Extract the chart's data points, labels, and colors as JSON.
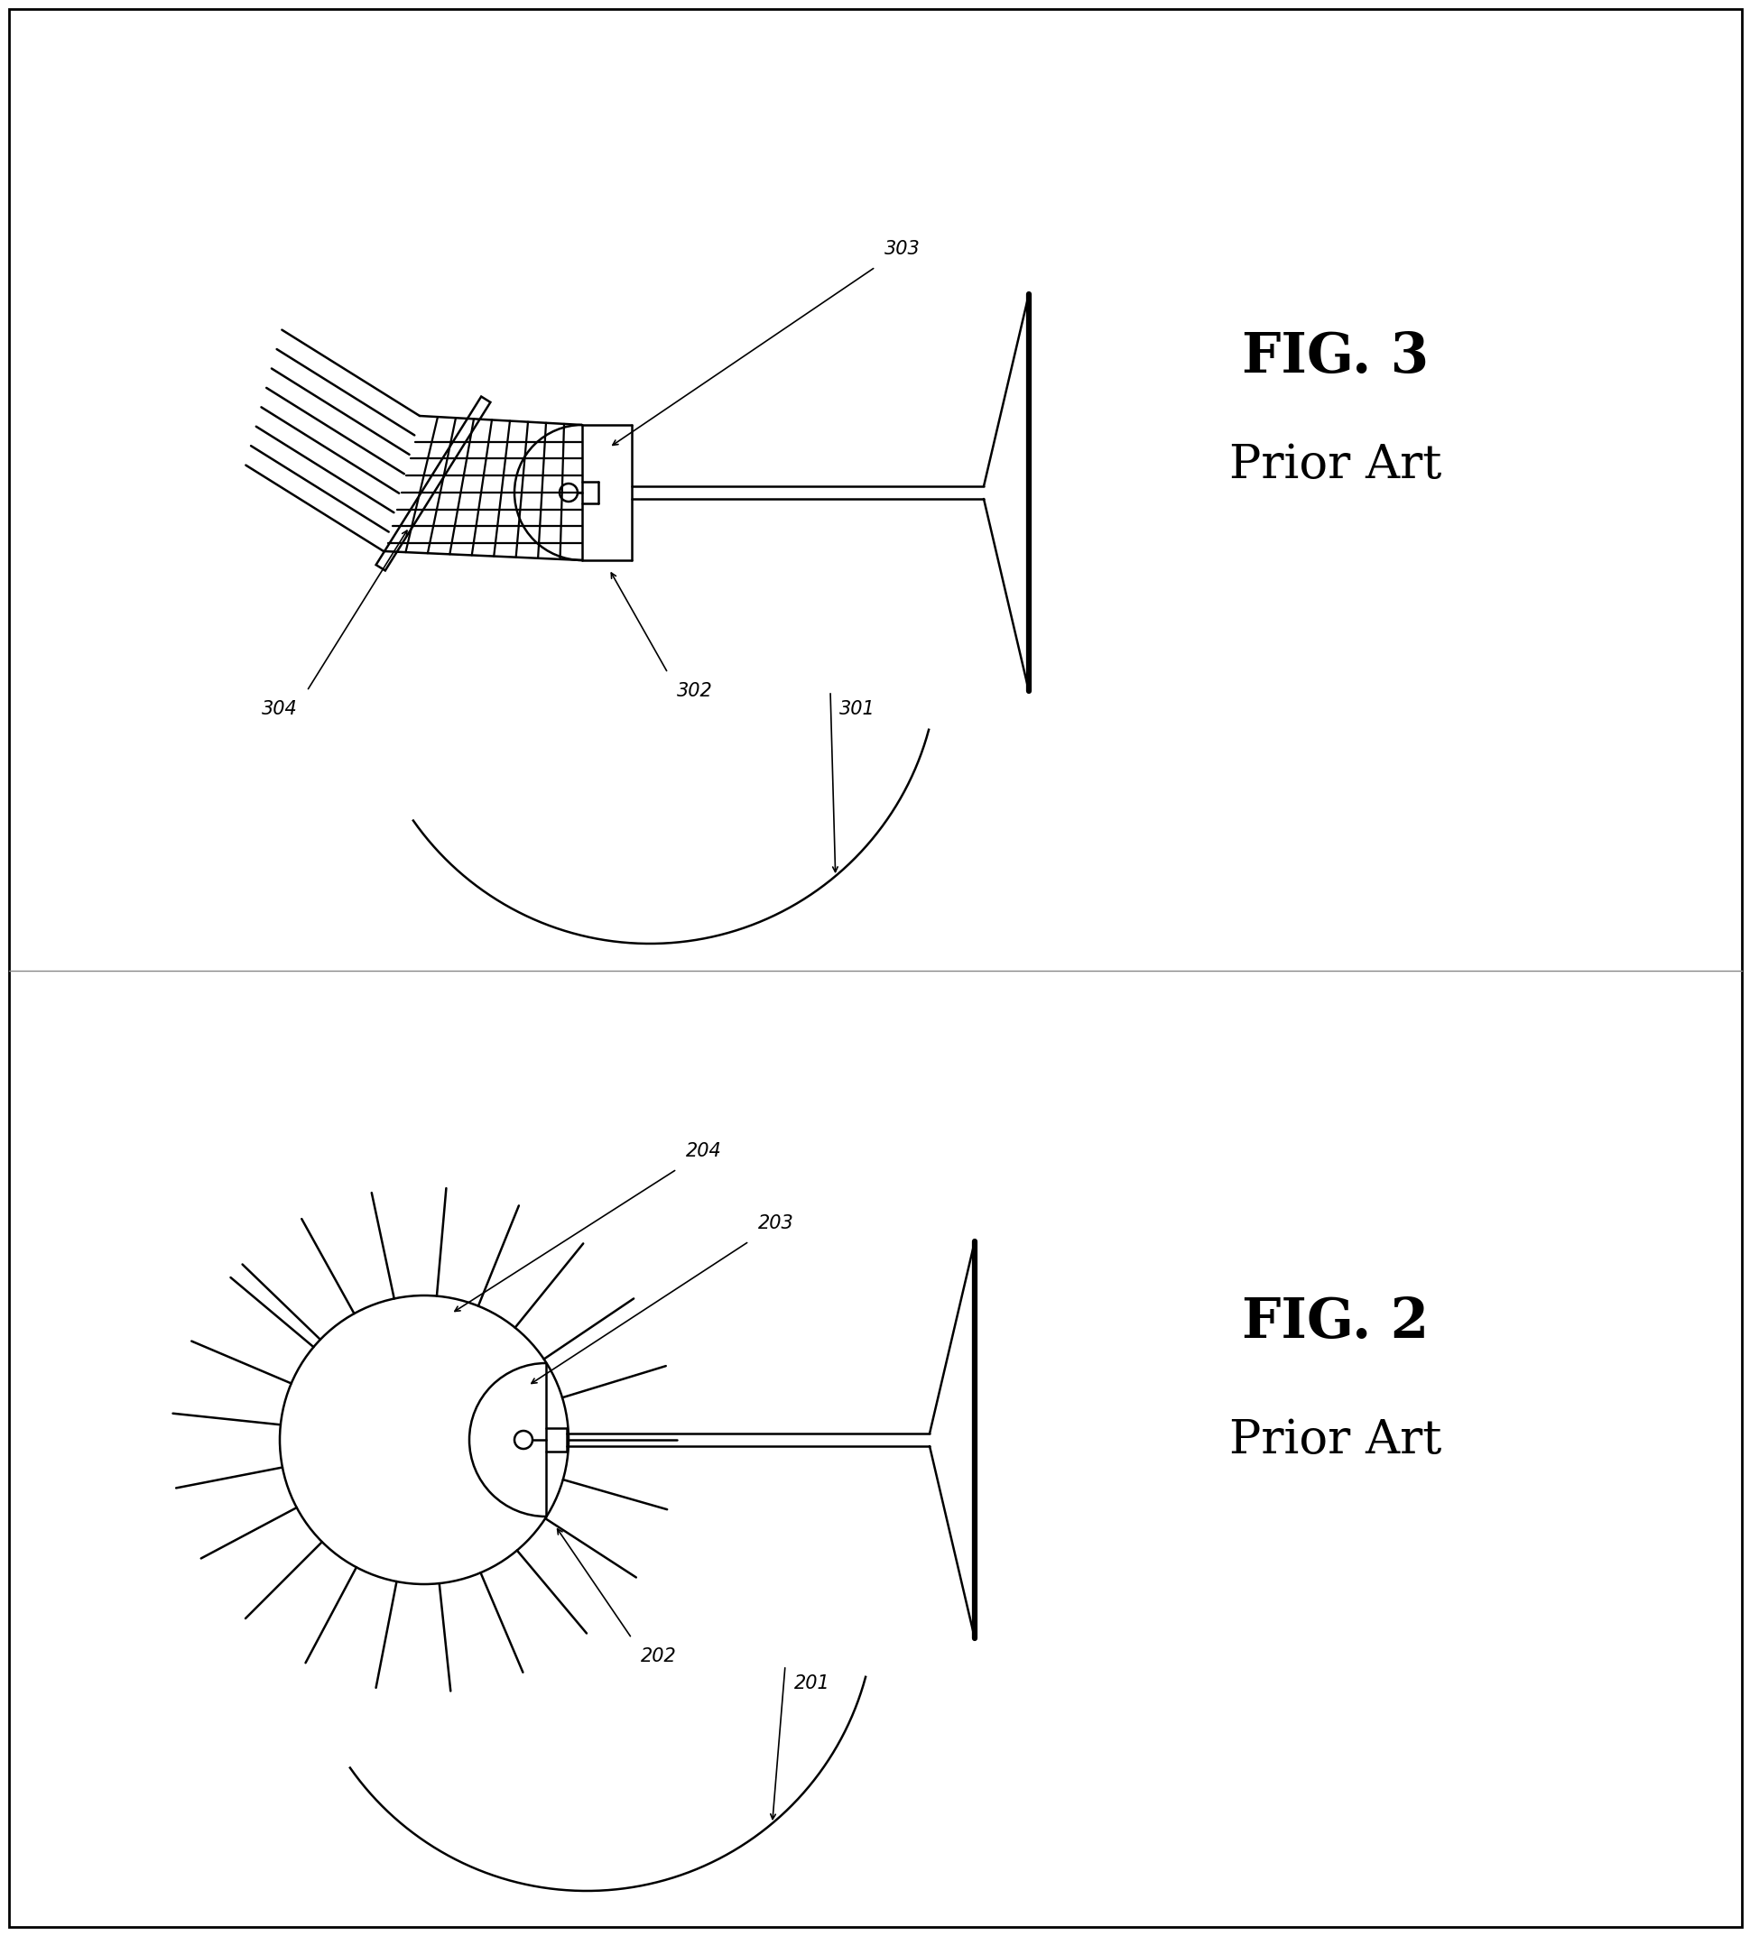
{
  "bg_color": "#ffffff",
  "line_color": "#000000",
  "fig_width": 19.4,
  "fig_height": 21.46,
  "lw": 1.8,
  "fig3": {
    "title": "FIG. 3",
    "subtitle": "Prior Art",
    "labels": [
      "301",
      "302",
      "303",
      "304"
    ]
  },
  "fig2": {
    "title": "FIG. 2",
    "subtitle": "Prior Art",
    "labels": [
      "201",
      "202",
      "203",
      "204"
    ]
  }
}
